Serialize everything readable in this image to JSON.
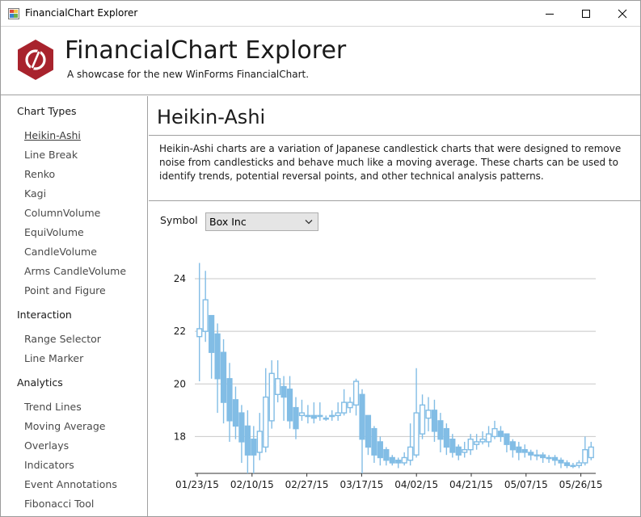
{
  "window": {
    "title": "FinancialChart Explorer",
    "icon": "app-window-icon",
    "controls": [
      "minimize-icon",
      "maximize-icon",
      "close-icon"
    ]
  },
  "header": {
    "title": "FinancialChart Explorer",
    "subtitle": "A showcase for the new WinForms FinancialChart.",
    "logo": "hexagon-logo-icon",
    "brand_color": "#a8232d"
  },
  "sidebar": {
    "groups": [
      {
        "title": "Chart Types",
        "items": [
          "Heikin-Ashi",
          "Line Break",
          "Renko",
          "Kagi",
          "ColumnVolume",
          "EquiVolume",
          "CandleVolume",
          "Arms CandleVolume",
          "Point and Figure"
        ]
      },
      {
        "title": "Interaction",
        "items": [
          "Range Selector",
          "Line Marker"
        ]
      },
      {
        "title": "Analytics",
        "items": [
          "Trend Lines",
          "Moving Average",
          "Overlays",
          "Indicators",
          "Event Annotations",
          "Fibonacci Tool"
        ]
      }
    ],
    "selected": "Heikin-Ashi"
  },
  "main": {
    "title": "Heikin-Ashi",
    "description": "Heikin-Ashi charts are a variation of Japanese candlestick charts that were designed to remove noise from candlesticks and behave much like a moving average. These charts can be used to identify trends, potential reversal points, and other technical analysis patterns.",
    "symbol_label": "Symbol",
    "symbol_value": "Box Inc"
  },
  "chart_data": {
    "type": "candlestick",
    "series_color": "#82bde5",
    "x_tick_labels": [
      "01/23/15",
      "02/10/15",
      "02/27/15",
      "03/17/15",
      "04/02/15",
      "04/21/15",
      "05/07/15",
      "05/26/15"
    ],
    "y_ticks": [
      18,
      20,
      22,
      24
    ],
    "ylim": [
      16.6,
      24.8
    ],
    "grid": "horizontal",
    "candles": [
      [
        21.8,
        22.1,
        24.6,
        20.1
      ],
      [
        22.0,
        23.2,
        24.3,
        21.6
      ],
      [
        22.6,
        21.2,
        22.6,
        20.2
      ],
      [
        21.9,
        20.2,
        22.3,
        18.9
      ],
      [
        21.2,
        19.3,
        21.7,
        18.5
      ],
      [
        20.2,
        18.6,
        20.8,
        17.8
      ],
      [
        19.4,
        18.4,
        19.9,
        17.9
      ],
      [
        18.9,
        17.8,
        19.2,
        17.0
      ],
      [
        18.4,
        17.3,
        19.0,
        16.6
      ],
      [
        17.9,
        17.3,
        18.4,
        16.6
      ],
      [
        17.4,
        18.2,
        18.9,
        17.1
      ],
      [
        17.6,
        19.5,
        20.6,
        17.4
      ],
      [
        18.6,
        20.4,
        20.9,
        18.3
      ],
      [
        19.6,
        20.2,
        20.9,
        19.3
      ],
      [
        19.9,
        19.5,
        20.3,
        18.6
      ],
      [
        19.8,
        18.6,
        20.3,
        18.3
      ],
      [
        19.1,
        18.3,
        19.5,
        17.9
      ],
      [
        18.8,
        18.9,
        19.4,
        18.6
      ],
      [
        18.8,
        18.8,
        19.2,
        18.5
      ],
      [
        18.8,
        18.7,
        19.3,
        18.5
      ],
      [
        18.8,
        18.8,
        19.3,
        18.6
      ],
      [
        18.7,
        18.7,
        18.8,
        18.6
      ],
      [
        18.8,
        18.8,
        19.0,
        18.6
      ],
      [
        18.8,
        18.9,
        19.3,
        18.6
      ],
      [
        18.9,
        19.3,
        19.8,
        18.8
      ],
      [
        19.1,
        19.3,
        19.5,
        18.9
      ],
      [
        19.2,
        20.1,
        20.2,
        18.8
      ],
      [
        19.6,
        17.9,
        19.8,
        16.6
      ],
      [
        18.8,
        17.6,
        18.8,
        17.3
      ],
      [
        18.3,
        17.3,
        18.4,
        17.0
      ],
      [
        17.8,
        17.2,
        18.0,
        16.9
      ],
      [
        17.5,
        17.1,
        17.6,
        16.9
      ],
      [
        17.2,
        17.0,
        17.3,
        16.9
      ],
      [
        17.1,
        17.0,
        17.2,
        16.8
      ],
      [
        17.0,
        17.2,
        17.4,
        16.9
      ],
      [
        17.1,
        17.6,
        18.5,
        16.9
      ],
      [
        17.3,
        18.9,
        20.6,
        17.2
      ],
      [
        18.1,
        19.2,
        19.6,
        17.9
      ],
      [
        18.7,
        19.0,
        19.5,
        18.2
      ],
      [
        19.0,
        18.2,
        19.4,
        17.8
      ],
      [
        18.6,
        17.9,
        18.9,
        17.4
      ],
      [
        18.3,
        17.6,
        18.5,
        17.3
      ],
      [
        17.9,
        17.4,
        18.1,
        17.2
      ],
      [
        17.6,
        17.3,
        17.7,
        17.1
      ],
      [
        17.4,
        17.5,
        17.8,
        17.2
      ],
      [
        17.5,
        17.9,
        18.1,
        17.3
      ],
      [
        17.7,
        17.8,
        18.1,
        17.5
      ],
      [
        17.8,
        17.9,
        18.2,
        17.7
      ],
      [
        17.8,
        18.1,
        18.4,
        17.6
      ],
      [
        18.0,
        18.3,
        18.6,
        17.9
      ],
      [
        18.2,
        18.0,
        18.4,
        17.8
      ],
      [
        18.1,
        17.7,
        18.1,
        17.4
      ],
      [
        17.8,
        17.5,
        17.9,
        17.2
      ],
      [
        17.6,
        17.4,
        17.8,
        17.1
      ],
      [
        17.5,
        17.4,
        17.7,
        17.2
      ],
      [
        17.4,
        17.3,
        17.5,
        17.1
      ],
      [
        17.3,
        17.3,
        17.5,
        17.1
      ],
      [
        17.3,
        17.2,
        17.4,
        17.0
      ],
      [
        17.2,
        17.2,
        17.3,
        17.0
      ],
      [
        17.2,
        17.1,
        17.3,
        16.9
      ],
      [
        17.1,
        17.0,
        17.2,
        16.8
      ],
      [
        17.0,
        16.9,
        17.1,
        16.8
      ],
      [
        16.9,
        16.9,
        17.0,
        16.8
      ],
      [
        16.9,
        17.0,
        17.1,
        16.8
      ],
      [
        17.0,
        17.5,
        18.0,
        16.9
      ],
      [
        17.2,
        17.6,
        17.8,
        17.1
      ]
    ]
  }
}
